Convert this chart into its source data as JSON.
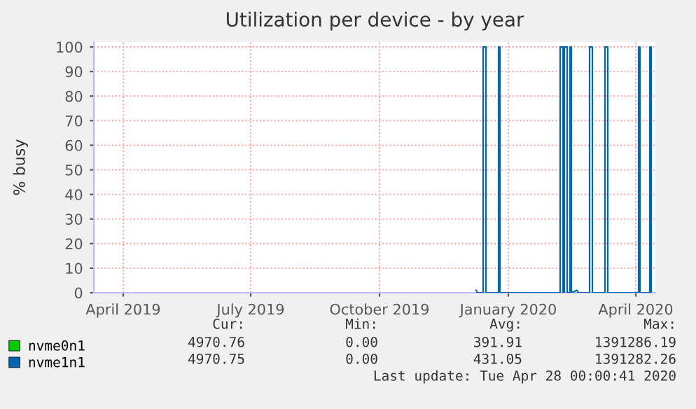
{
  "chart_data": {
    "type": "line",
    "title": "Utilization per device - by year",
    "ylabel": "% busy",
    "xlim": [
      "2019-03-11",
      "2020-04-15"
    ],
    "xticks": [
      {
        "value": "2019-04-01",
        "label": "April 2019"
      },
      {
        "value": "2019-07-01",
        "label": "July 2019"
      },
      {
        "value": "2019-10-01",
        "label": "October 2019"
      },
      {
        "value": "2020-01-01",
        "label": "January 2020"
      },
      {
        "value": "2020-04-01",
        "label": "April 2020"
      }
    ],
    "ylim": [
      0,
      102
    ],
    "yticks": [
      0,
      10,
      20,
      30,
      40,
      50,
      60,
      70,
      80,
      90,
      100
    ],
    "grid": true,
    "legend": "bottom left",
    "line_style": "solid",
    "marker": "none",
    "series": [
      {
        "name": "nvme0n1",
        "color": "#00cc00"
      },
      {
        "name": "nvme1n1",
        "color": "#0066b3",
        "x": [
          "2019-12-09",
          "2019-12-10",
          "2019-12-14",
          "2019-12-14",
          "2019-12-16",
          "2019-12-16",
          "2019-12-25",
          "2019-12-25",
          "2019-12-26",
          "2019-12-26",
          "2020-02-07",
          "2020-02-07",
          "2020-02-09",
          "2020-02-09",
          "2020-02-10",
          "2020-02-10",
          "2020-02-12",
          "2020-02-12",
          "2020-02-14",
          "2020-02-14",
          "2020-02-15",
          "2020-02-15",
          "2020-02-19",
          "2020-02-20",
          "2020-02-28",
          "2020-02-28",
          "2020-03-01",
          "2020-03-01",
          "2020-03-10",
          "2020-03-10",
          "2020-03-12",
          "2020-03-12",
          "2020-04-03",
          "2020-04-03",
          "2020-04-04",
          "2020-04-04",
          "2020-04-11",
          "2020-04-11",
          "2020-04-12",
          "2020-04-12"
        ],
        "values": [
          1,
          0,
          0,
          100,
          100,
          0,
          0,
          100,
          100,
          0,
          0,
          100,
          100,
          0,
          0,
          100,
          100,
          0,
          0,
          100,
          100,
          0,
          1,
          0,
          0,
          100,
          100,
          0,
          0,
          100,
          100,
          0,
          0,
          100,
          100,
          0,
          0,
          100,
          100,
          0
        ]
      }
    ],
    "annotations": [
      "Cur:",
      "Min:",
      "Avg:",
      "Max:",
      "4970.76",
      "0.00",
      "391.91",
      "1391286.19",
      "4970.75",
      "0.00",
      "431.05",
      "1391282.26",
      "Last update: Tue Apr 28 00:00:41 2020"
    ]
  }
}
